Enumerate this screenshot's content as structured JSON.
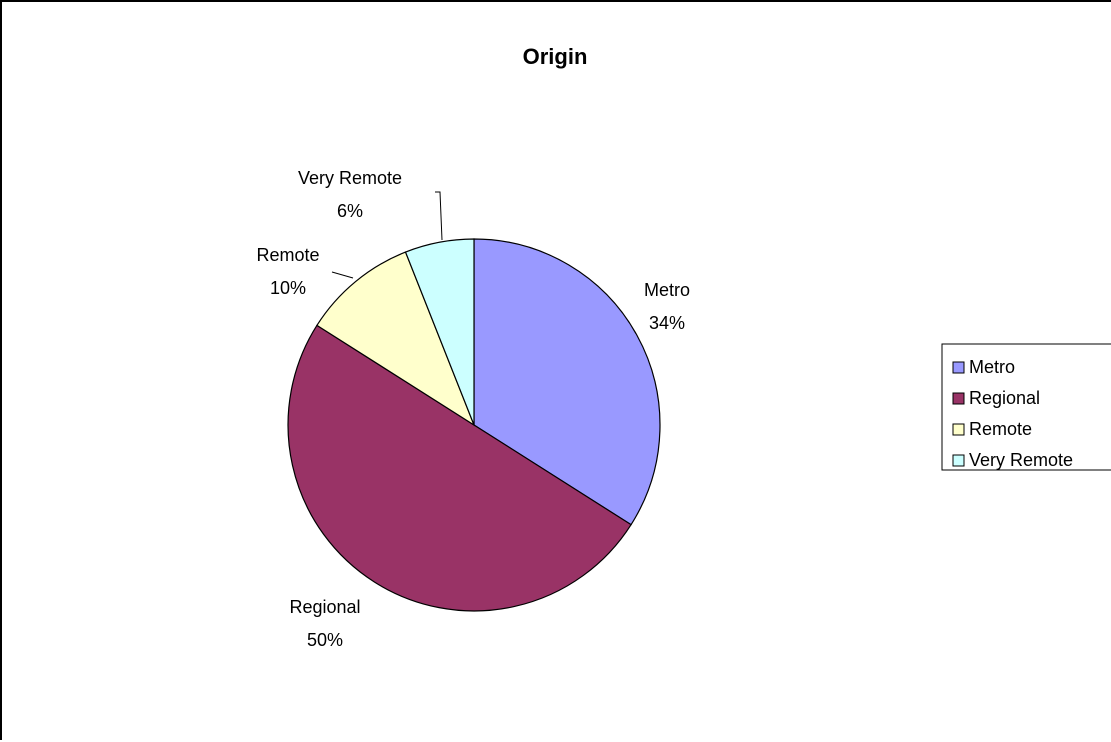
{
  "chart_data": {
    "type": "pie",
    "title": "Origin",
    "categories": [
      "Metro",
      "Regional",
      "Remote",
      "Very Remote"
    ],
    "values": [
      34,
      50,
      10,
      6
    ],
    "data_labels": [
      "34%",
      "50%",
      "10%",
      "6%"
    ],
    "colors": [
      "#9999FF",
      "#993366",
      "#FFFFCC",
      "#CCFFFF"
    ],
    "legend": {
      "position": "right",
      "entries": [
        "Metro",
        "Regional",
        "Remote",
        "Very Remote"
      ]
    }
  }
}
